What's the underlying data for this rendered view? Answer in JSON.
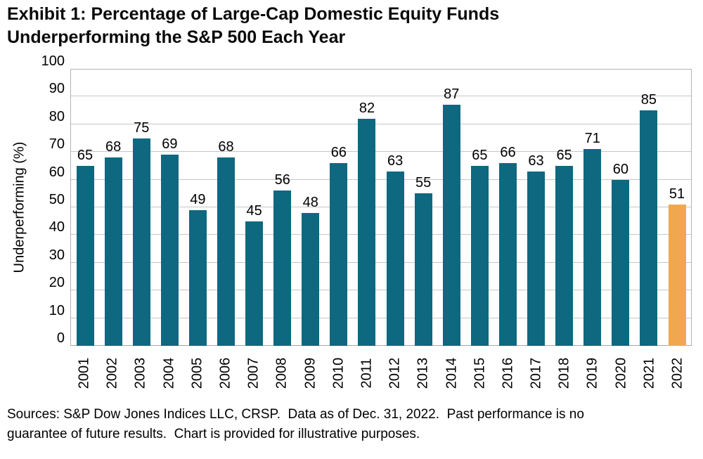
{
  "page": {
    "title": "Exhibit 1: Percentage of Large-Cap Domestic Equity Funds\nUnderperforming the S&P 500 Each Year",
    "footer": "Sources: S&P Dow Jones Indices LLC, CRSP.  Data as of Dec. 31, 2022.  Past performance is no\nguarantee of future results.  Chart is provided for illustrative purposes."
  },
  "chart_data": {
    "type": "bar",
    "title": "Exhibit 1: Percentage of Large-Cap Domestic Equity Funds Underperforming the S&P 500 Each Year",
    "categories": [
      "2001",
      "2002",
      "2003",
      "2004",
      "2005",
      "2006",
      "2007",
      "2008",
      "2009",
      "2010",
      "2011",
      "2012",
      "2013",
      "2014",
      "2015",
      "2016",
      "2017",
      "2018",
      "2019",
      "2020",
      "2021",
      "2022"
    ],
    "values": [
      65,
      68,
      75,
      69,
      49,
      68,
      45,
      56,
      48,
      66,
      82,
      63,
      55,
      87,
      65,
      66,
      63,
      65,
      71,
      60,
      85,
      51
    ],
    "xlabel": "",
    "ylabel": "Underperforming (%)",
    "ylim": [
      0,
      100
    ],
    "ytick_step": 10,
    "grid": true,
    "legend": false,
    "value_labels_shown": true,
    "highlight_category": "2022",
    "colors": {
      "bar": "#0e6880",
      "highlight": "#f0a850",
      "gridline": "#c6c6c6",
      "text": "#000000"
    }
  }
}
